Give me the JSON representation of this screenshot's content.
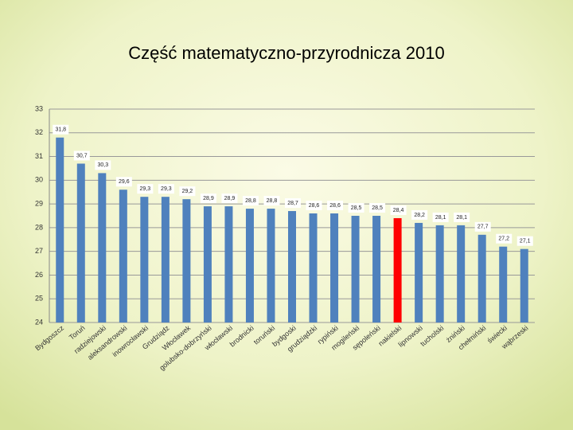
{
  "chart_data": {
    "type": "bar",
    "title": "Część matematyczno-przyrodnicza 2010",
    "categories": [
      "Bydgoszcz",
      "Toruń",
      "radziejowski",
      "aleksandrowski",
      "inowrocławski",
      "Grudziądz",
      "Włocławek",
      "golubsko-dobrzyński",
      "włocławski",
      "brodnicki",
      "toruński",
      "bydgoski",
      "grudziądzki",
      "rypiński",
      "mogileński",
      "sępoleński",
      "nakielski",
      "lipnowski",
      "tucholski",
      "żniński",
      "chełmiński",
      "świecki",
      "wąbrzeski"
    ],
    "values": [
      31.8,
      30.7,
      30.3,
      29.6,
      29.3,
      29.3,
      29.2,
      28.9,
      28.9,
      28.8,
      28.8,
      28.7,
      28.6,
      28.6,
      28.5,
      28.5,
      28.4,
      28.2,
      28.1,
      28.1,
      27.7,
      27.2,
      27.1
    ],
    "value_labels": [
      "31,8",
      "30,7",
      "30,3",
      "29,6",
      "29,3",
      "29,3",
      "29,2",
      "28,9",
      "28,9",
      "28,8",
      "28,8",
      "28,7",
      "28,6",
      "28,6",
      "28,5",
      "28,5",
      "28,4",
      "28,2",
      "28,1",
      "28,1",
      "27,7",
      "27,2",
      "27,1"
    ],
    "colors": [
      "#4f81bd",
      "#4f81bd",
      "#4f81bd",
      "#4f81bd",
      "#4f81bd",
      "#4f81bd",
      "#4f81bd",
      "#4f81bd",
      "#4f81bd",
      "#4f81bd",
      "#4f81bd",
      "#4f81bd",
      "#4f81bd",
      "#4f81bd",
      "#4f81bd",
      "#4f81bd",
      "#ff0000",
      "#4f81bd",
      "#4f81bd",
      "#4f81bd",
      "#4f81bd",
      "#4f81bd",
      "#4f81bd"
    ],
    "ylim": [
      24,
      33
    ],
    "yticks": [
      24,
      25,
      26,
      27,
      28,
      29,
      30,
      31,
      32,
      33
    ],
    "grid": true
  }
}
